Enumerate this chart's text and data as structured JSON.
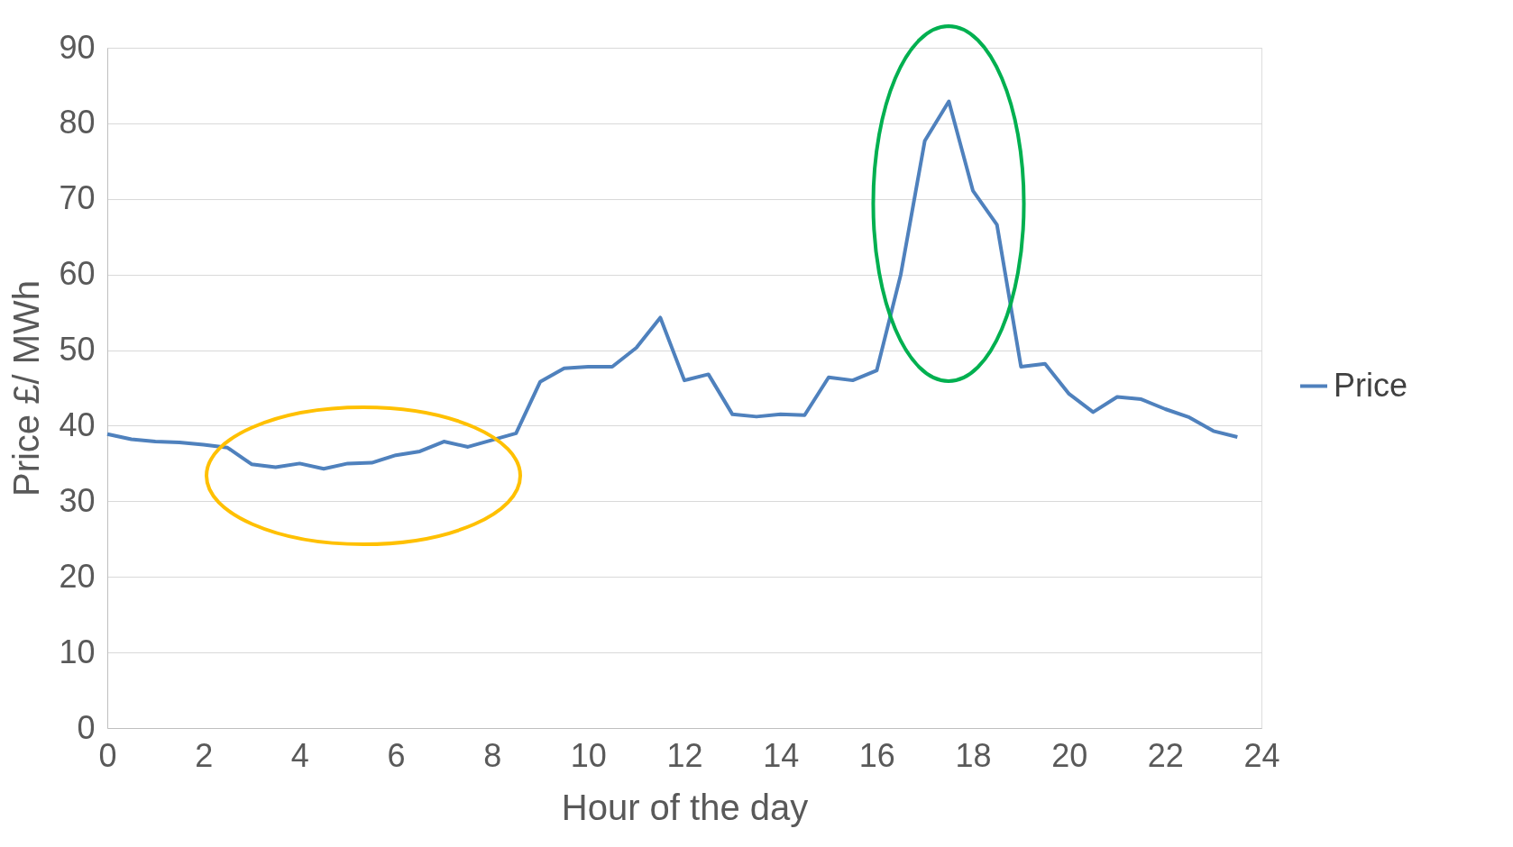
{
  "chart_data": {
    "type": "line",
    "xlabel": "Hour of the day",
    "ylabel": "Price £/ MWh",
    "x": [
      0,
      0.5,
      1,
      1.5,
      2,
      2.5,
      3,
      3.5,
      4,
      4.5,
      5,
      5.5,
      6,
      6.5,
      7,
      7.5,
      8,
      8.5,
      9,
      9.5,
      10,
      10.5,
      11,
      11.5,
      12,
      12.5,
      13,
      13.5,
      14,
      14.5,
      15,
      15.5,
      16,
      16.5,
      17,
      17.5,
      18,
      18.5,
      19,
      19.5,
      20,
      20.5,
      21,
      21.5,
      22,
      22.5,
      23,
      23.5
    ],
    "series": [
      {
        "name": "Price",
        "color": "#4f81bd",
        "values": [
          38.9,
          38.2,
          37.9,
          37.8,
          37.5,
          37.1,
          34.9,
          34.5,
          35.0,
          34.3,
          35.0,
          35.1,
          36.1,
          36.6,
          37.9,
          37.2,
          38.1,
          39.0,
          45.8,
          47.6,
          47.8,
          47.8,
          50.3,
          54.3,
          46.0,
          46.8,
          41.5,
          41.2,
          41.5,
          41.4,
          46.4,
          46.0,
          47.3,
          60.0,
          77.7,
          82.9,
          71.1,
          66.6,
          47.8,
          48.2,
          44.2,
          41.8,
          43.8,
          43.5,
          42.2,
          41.1,
          39.3,
          38.5
        ]
      }
    ],
    "xlim": [
      0,
      24
    ],
    "xticks": [
      0,
      2,
      4,
      6,
      8,
      10,
      12,
      14,
      16,
      18,
      20,
      22,
      24
    ],
    "ylim": [
      0,
      90
    ],
    "yticks": [
      0,
      10,
      20,
      30,
      40,
      50,
      60,
      70,
      80,
      90
    ],
    "grid": "y",
    "legend": "right",
    "marker": "none",
    "line_style": "solid"
  }
}
